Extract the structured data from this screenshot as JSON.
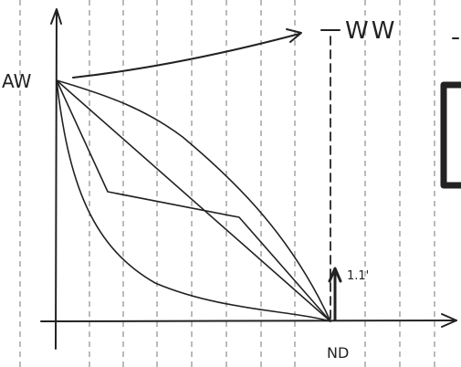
{
  "labels": {
    "y_axis": "AW",
    "top": "WW",
    "x_axis": "ND",
    "note": "1.1'"
  }
}
